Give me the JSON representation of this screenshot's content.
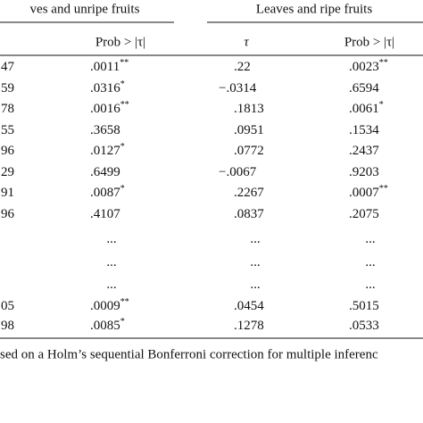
{
  "table": {
    "group_headers": [
      "ves and unripe fruits",
      "Leaves and ripe fruits"
    ],
    "column_headers": [
      "Prob > |τ|",
      "τ",
      "Prob > |τ|"
    ],
    "rows": [
      [
        {
          "v": "47"
        },
        {
          "v": ".0011",
          "sup": "**"
        },
        {
          "v": ".22"
        },
        {
          "v": ".0023",
          "sup": "**"
        }
      ],
      [
        {
          "v": "59"
        },
        {
          "v": ".0316",
          "sup": "*"
        },
        {
          "v": "−.0314"
        },
        {
          "v": ".6594"
        }
      ],
      [
        {
          "v": "78"
        },
        {
          "v": ".0016",
          "sup": "**"
        },
        {
          "v": ".1813"
        },
        {
          "v": ".0061",
          "sup": "*"
        }
      ],
      [
        {
          "v": "55"
        },
        {
          "v": ".3658"
        },
        {
          "v": ".0951"
        },
        {
          "v": ".1534"
        }
      ],
      [
        {
          "v": "96"
        },
        {
          "v": ".0127",
          "sup": "*"
        },
        {
          "v": ".0772"
        },
        {
          "v": ".2437"
        }
      ],
      [
        {
          "v": "29"
        },
        {
          "v": ".6499"
        },
        {
          "v": "−.0067"
        },
        {
          "v": ".9203"
        }
      ],
      [
        {
          "v": "91"
        },
        {
          "v": ".0087",
          "sup": "*"
        },
        {
          "v": ".2267"
        },
        {
          "v": ".0007",
          "sup": "**"
        }
      ],
      [
        {
          "v": "96"
        },
        {
          "v": ".4107"
        },
        {
          "v": ".0837"
        },
        {
          "v": ".2075"
        }
      ],
      [
        null,
        {
          "v": "..."
        },
        {
          "v": "..."
        },
        {
          "v": "..."
        }
      ],
      [
        null,
        {
          "v": "..."
        },
        {
          "v": "..."
        },
        {
          "v": "..."
        }
      ],
      [
        null,
        {
          "v": "..."
        },
        {
          "v": "..."
        },
        {
          "v": "..."
        }
      ],
      [
        {
          "v": "05"
        },
        {
          "v": ".0009",
          "sup": "**"
        },
        {
          "v": ".0454"
        },
        {
          "v": ".5015"
        }
      ],
      [
        {
          "v": "98"
        },
        {
          "v": ".0085",
          "sup": "*"
        },
        {
          "v": ".1278"
        },
        {
          "v": ".0533"
        }
      ]
    ],
    "footnote": "sed on a Holm’s sequential Bonferroni correction for multiple inferenc"
  }
}
